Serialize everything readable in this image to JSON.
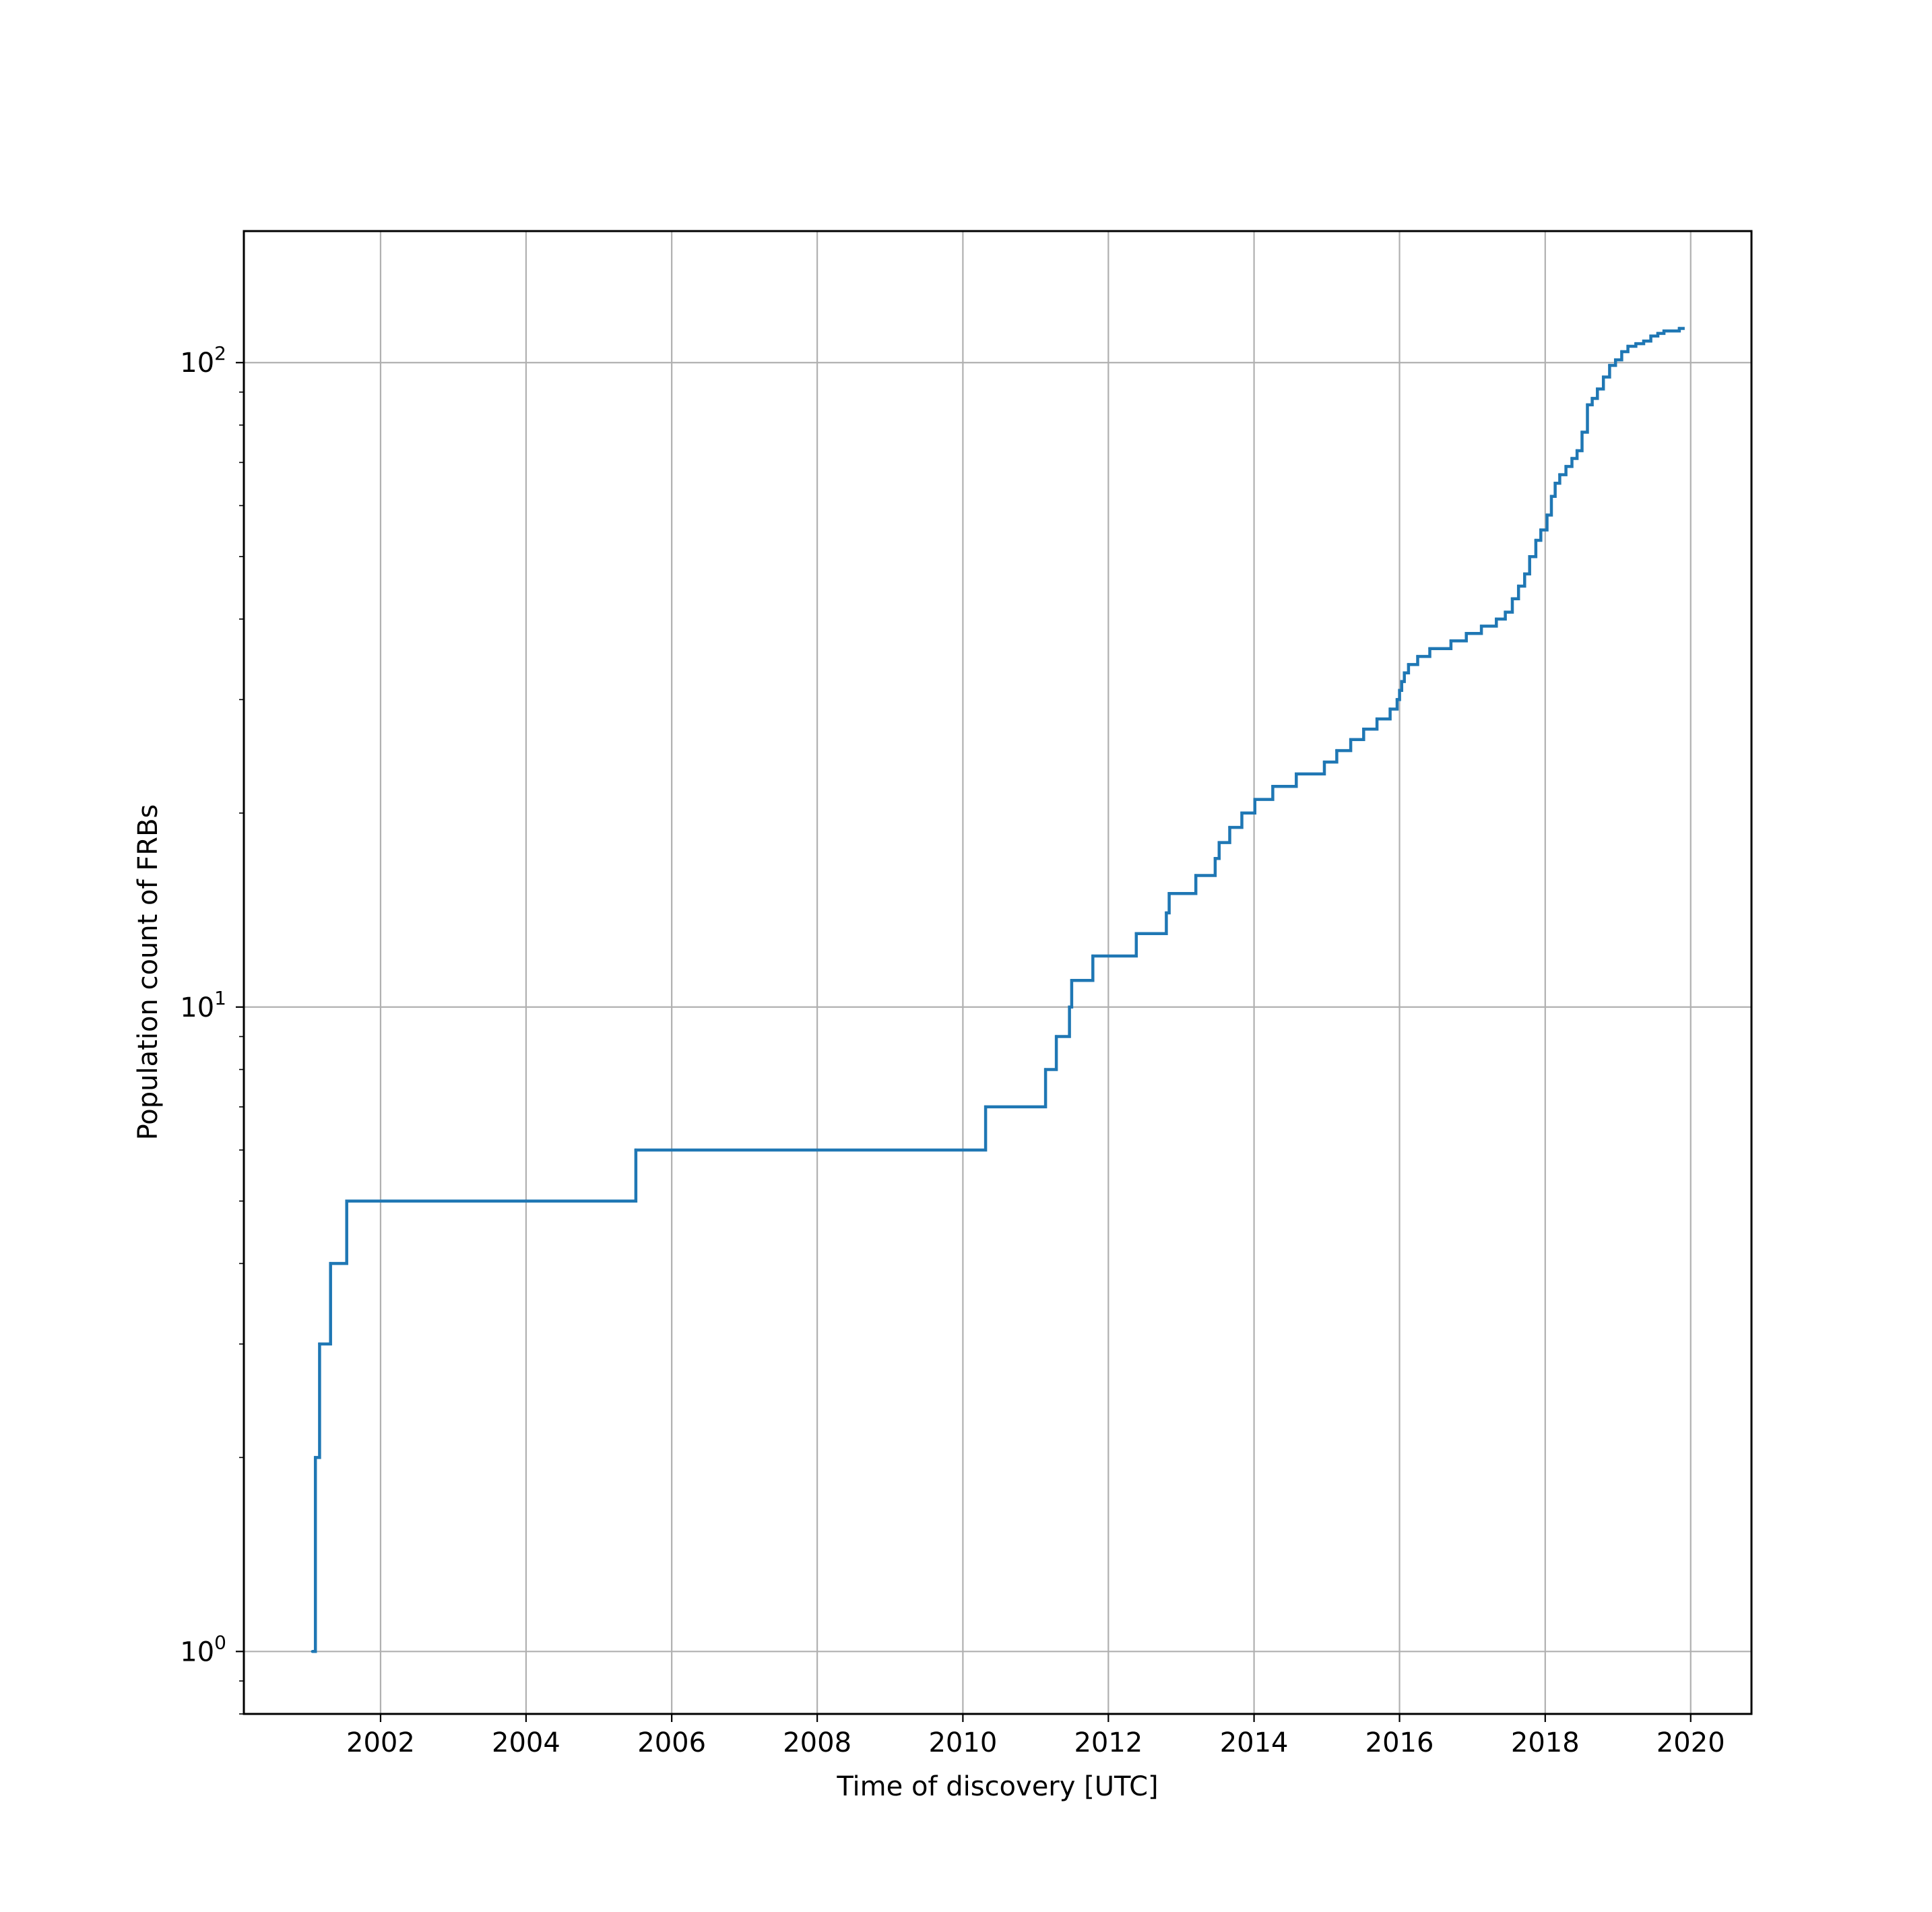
{
  "chart_data": {
    "type": "line",
    "drawstyle": "steps-post",
    "title": "",
    "xlabel": "Time of discovery [UTC]",
    "ylabel": "Population count of FRBs",
    "x_axis_type": "date",
    "y_scale": "log",
    "xlim": [
      "2000-02-15",
      "2020-11-01"
    ],
    "ylim": [
      0.8,
      160
    ],
    "grid": true,
    "legend": "none",
    "x_ticks": [
      "2002",
      "2004",
      "2006",
      "2008",
      "2010",
      "2012",
      "2014",
      "2016",
      "2018",
      "2020"
    ],
    "y_ticks": [
      {
        "value": 1,
        "base": "10",
        "exp": "0"
      },
      {
        "value": 10,
        "base": "10",
        "exp": "1"
      },
      {
        "value": 100,
        "base": "10",
        "exp": "2"
      }
    ],
    "colors": {
      "line": "#1f77b4",
      "grid": "#b0b0b0",
      "frame": "#000000"
    },
    "series": [
      {
        "x": [
          "2001-01-24",
          "2001-02-08",
          "2001-03-01",
          "2001-04-25",
          "2001-07-15",
          "2005-07-05",
          "2010-04-25",
          "2011-02-20",
          "2011-04-15",
          "2011-06-20",
          "2011-07-01",
          "2011-10-15",
          "2012-05-20",
          "2012-10-18",
          "2012-11-01",
          "2013-03-15",
          "2013-06-20",
          "2013-07-10",
          "2013-09-01",
          "2013-11-01",
          "2014-01-05",
          "2014-04-05",
          "2014-08-01",
          "2014-12-20",
          "2015-02-20",
          "2015-05-01",
          "2015-07-05",
          "2015-09-10",
          "2015-11-15",
          "2015-12-20",
          "2016-01-01",
          "2016-01-12",
          "2016-01-25",
          "2016-02-15",
          "2016-04-01",
          "2016-06-01",
          "2016-09-15",
          "2016-12-01",
          "2017-02-15",
          "2017-05-01",
          "2017-06-15",
          "2017-07-20",
          "2017-08-20",
          "2017-09-20",
          "2017-10-15",
          "2017-11-15",
          "2017-12-10",
          "2018-01-10",
          "2018-02-01",
          "2018-02-20",
          "2018-03-15",
          "2018-04-15",
          "2018-05-15",
          "2018-06-10",
          "2018-07-05",
          "2018-08-01",
          "2018-08-25",
          "2018-09-20",
          "2018-10-20",
          "2018-11-20",
          "2018-12-20",
          "2019-01-20",
          "2019-02-20",
          "2019-04-01",
          "2019-05-10",
          "2019-06-15",
          "2019-07-20",
          "2019-08-20",
          "2019-11-05"
        ],
        "y": [
          1,
          2,
          3,
          4,
          5,
          6,
          7,
          8,
          9,
          10,
          11,
          12,
          13,
          14,
          15,
          16,
          17,
          18,
          19,
          20,
          21,
          22,
          23,
          24,
          25,
          26,
          27,
          28,
          29,
          30,
          31,
          32,
          33,
          34,
          35,
          36,
          37,
          38,
          39,
          40,
          41,
          43,
          45,
          47,
          50,
          53,
          55,
          58,
          62,
          65,
          67,
          69,
          71,
          73,
          78,
          86,
          88,
          91,
          95,
          99,
          101,
          104,
          106,
          107,
          108,
          110,
          111,
          112,
          113
        ]
      }
    ]
  }
}
